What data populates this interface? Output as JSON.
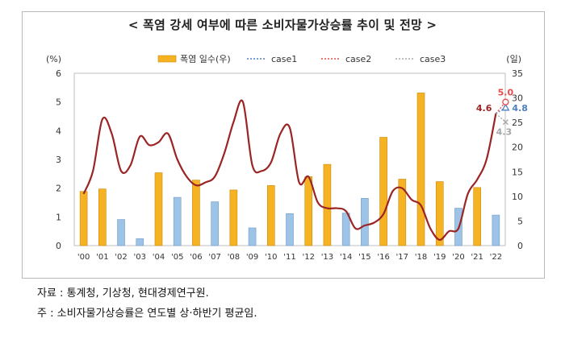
{
  "title": "< 폭염 강세 여부에 따른 소비자물가상승률 추이 및 전망 >",
  "notes": {
    "source": "자료 : 통계청, 기상청, 현대경제연구원.",
    "footnote": "주 : 소비자물가상승률은 연도별 상·하반기 평균임."
  },
  "chart_data": {
    "type": "bar",
    "title": "< 폭염 강세 여부에 따른 소비자물가상승률 추이 및 전망 >",
    "left_unit": "(%)",
    "right_unit": "(일)",
    "left_ylim": [
      0,
      6
    ],
    "right_ylim": [
      0,
      35
    ],
    "left_ticks": [
      0,
      1,
      2,
      3,
      4,
      5,
      6
    ],
    "right_ticks": [
      0,
      5,
      10,
      15,
      20,
      25,
      30,
      35
    ],
    "categories": [
      "'00",
      "'01",
      "'02",
      "'03",
      "'04",
      "'05",
      "'06",
      "'07",
      "'08",
      "'09",
      "'10",
      "'11",
      "'12",
      "'13",
      "'14",
      "'15",
      "'16",
      "'17",
      "'18",
      "'19",
      "'20",
      "'21",
      "'22"
    ],
    "bars": {
      "name": "폭염 일수(우)",
      "values": [
        11,
        11.5,
        5.3,
        1.4,
        14.8,
        9.8,
        13.3,
        8.9,
        11.3,
        3.6,
        12.2,
        6.5,
        14,
        16.5,
        6.6,
        9.6,
        22,
        13.5,
        31,
        13,
        7.6,
        11.8,
        6.2
      ],
      "highlight": [
        true,
        true,
        false,
        false,
        true,
        false,
        true,
        false,
        true,
        false,
        true,
        false,
        true,
        true,
        false,
        false,
        true,
        true,
        true,
        true,
        false,
        true,
        false
      ],
      "highlight_color": "#f5b324",
      "normal_color": "#9dc3e6"
    },
    "line": {
      "name": "소비자물가상승률",
      "color": "#9b2424",
      "x": [
        0,
        0.5,
        1,
        1.5,
        2,
        2.5,
        3,
        3.5,
        4,
        4.5,
        5,
        5.5,
        6,
        6.5,
        7,
        7.5,
        8,
        8.5,
        9,
        9.5,
        10,
        10.5,
        11,
        11.5,
        12,
        12.5,
        13,
        13.5,
        14,
        14.5,
        15,
        15.5,
        16,
        16.5,
        17,
        17.5,
        18,
        18.5,
        19,
        19.5,
        20,
        20.5,
        21,
        21.5,
        22
      ],
      "values": [
        1.8,
        2.6,
        4.4,
        3.9,
        2.6,
        2.8,
        3.8,
        3.5,
        3.6,
        3.9,
        3.0,
        2.4,
        2.1,
        2.2,
        2.4,
        3.2,
        4.3,
        5.0,
        2.8,
        2.6,
        2.9,
        3.9,
        4.1,
        2.2,
        2.4,
        1.5,
        1.3,
        1.3,
        1.2,
        0.6,
        0.7,
        0.8,
        1.1,
        1.9,
        2.0,
        1.6,
        1.4,
        0.6,
        0.2,
        0.5,
        0.6,
        1.8,
        2.3,
        3.0,
        4.6
      ]
    },
    "scenarios": [
      {
        "name": "case1",
        "value": 4.8,
        "label": "4.8",
        "color": "#4f7fbf",
        "marker": "triangle"
      },
      {
        "name": "case2",
        "value": 5.0,
        "label": "5.0",
        "color": "#e84a4a",
        "marker": "circle"
      },
      {
        "name": "case3",
        "value": 4.3,
        "label": "4.3",
        "color": "#a6a6a6",
        "marker": "x"
      }
    ],
    "annotation": {
      "label": "4.6",
      "color": "#9b2424"
    },
    "legend": {
      "position": "top",
      "items": [
        "폭염 일수(우)",
        "case1",
        "case2",
        "case3"
      ]
    }
  }
}
